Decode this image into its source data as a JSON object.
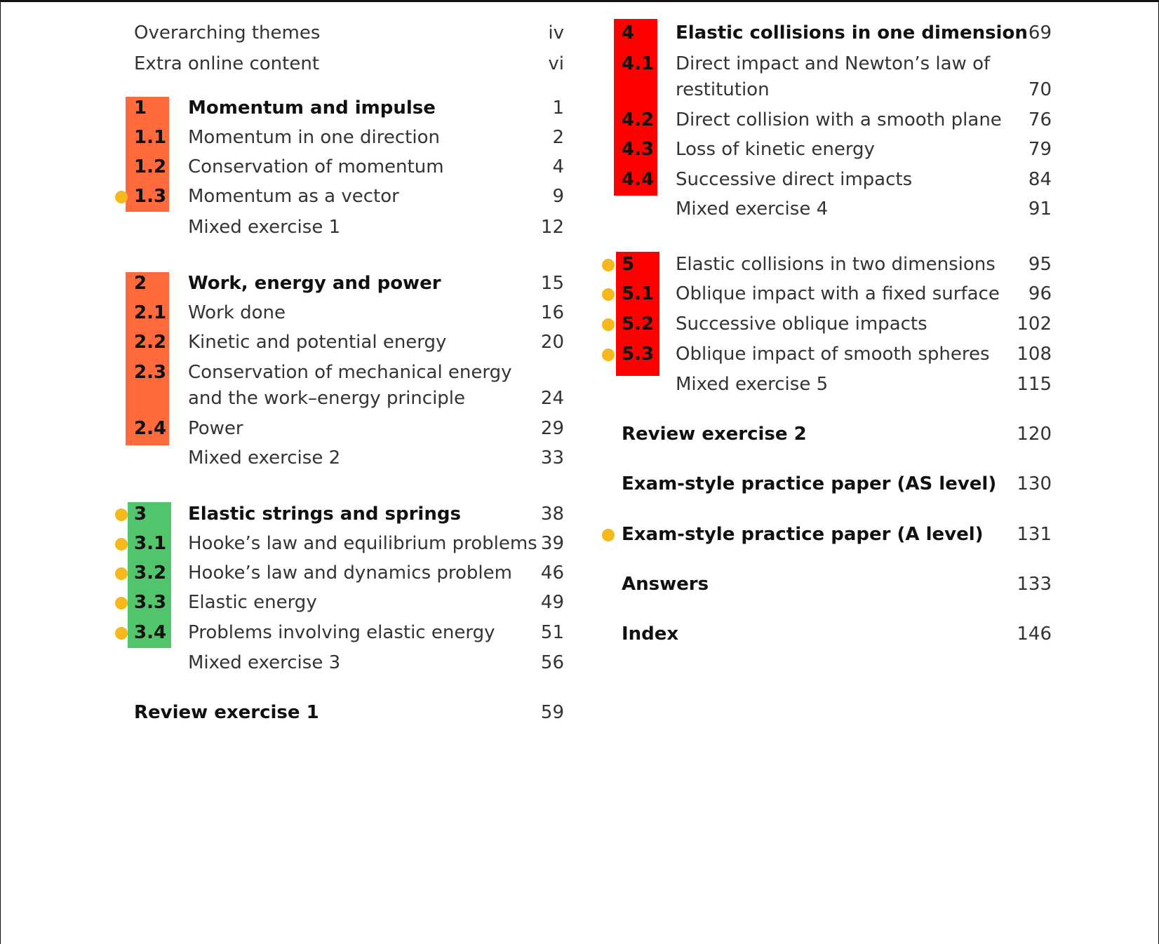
{
  "colors": {
    "orange": "#ff6a3d",
    "red": "#ff0000",
    "green": "#52c46b",
    "dot": "#f6b81b"
  },
  "left_column": [
    {
      "title": "Overarching themes",
      "page": "iv",
      "bold": false
    },
    {
      "title": "Extra online content",
      "page": "vi",
      "bold": false
    },
    {
      "num": "1",
      "title": "Momentum and impulse",
      "page": "1",
      "bold": true
    },
    {
      "num": "1.1",
      "title": "Momentum in one direction",
      "page": "2",
      "bold": false
    },
    {
      "num": "1.2",
      "title": "Conservation of momentum",
      "page": "4",
      "bold": false
    },
    {
      "num": "1.3",
      "title": "Momentum as a vector",
      "page": "9",
      "bold": false,
      "dot": true
    },
    {
      "title": "Mixed exercise 1",
      "page": "12",
      "bold": false
    },
    {
      "num": "2",
      "title": "Work, energy and power",
      "page": "15",
      "bold": true
    },
    {
      "num": "2.1",
      "title": "Work done",
      "page": "16",
      "bold": false
    },
    {
      "num": "2.2",
      "title": "Kinetic and potential energy",
      "page": "20",
      "bold": false
    },
    {
      "num": "2.3",
      "title": "Conservation of mechanical energy",
      "title2": "and the work–energy principle",
      "page": "24",
      "bold": false
    },
    {
      "num": "2.4",
      "title": "Power",
      "page": "29",
      "bold": false
    },
    {
      "title": "Mixed exercise 2",
      "page": "33",
      "bold": false
    },
    {
      "num": "3",
      "title": "Elastic strings and springs",
      "page": "38",
      "bold": true,
      "dot": true
    },
    {
      "num": "3.1",
      "title": "Hooke’s law and equilibrium problems",
      "page": "39",
      "bold": false,
      "dot": true
    },
    {
      "num": "3.2",
      "title": "Hooke’s law and dynamics problem",
      "page": "46",
      "bold": false,
      "dot": true
    },
    {
      "num": "3.3",
      "title": "Elastic energy",
      "page": "49",
      "bold": false,
      "dot": true
    },
    {
      "num": "3.4",
      "title": "Problems involving elastic energy",
      "page": "51",
      "bold": false,
      "dot": true
    },
    {
      "title": "Mixed exercise 3",
      "page": "56",
      "bold": false
    },
    {
      "title": "Review exercise 1",
      "page": "59",
      "bold": true
    }
  ],
  "right_column": [
    {
      "num": "4",
      "title": "Elastic collisions in one dimension",
      "page": "69",
      "bold": true
    },
    {
      "num": "4.1",
      "title": "Direct impact and Newton’s law of",
      "title2": "restitution",
      "page": "70",
      "bold": false
    },
    {
      "num": "4.2",
      "title": "Direct collision with a smooth plane",
      "page": "76",
      "bold": false
    },
    {
      "num": "4.3",
      "title": "Loss of kinetic energy",
      "page": "79",
      "bold": false
    },
    {
      "num": "4.4",
      "title": "Successive direct impacts",
      "page": "84",
      "bold": false
    },
    {
      "title": "Mixed exercise 4",
      "page": "91",
      "bold": false
    },
    {
      "num": "5",
      "title": "Elastic collisions in two dimensions",
      "page": "95",
      "bold": false,
      "dot": true
    },
    {
      "num": "5.1",
      "title": "Oblique impact with a fixed surface",
      "page": "96",
      "bold": false,
      "dot": true
    },
    {
      "num": "5.2",
      "title": "Successive oblique impacts",
      "page": "102",
      "bold": false,
      "dot": true
    },
    {
      "num": "5.3",
      "title": "Oblique impact of smooth spheres",
      "page": "108",
      "bold": false,
      "dot": true
    },
    {
      "title": "Mixed exercise 5",
      "page": "115",
      "bold": false
    },
    {
      "title": "Review exercise 2",
      "page": "120",
      "bold": true
    },
    {
      "title": "Exam-style practice paper (AS level)",
      "page": "130",
      "bold": true
    },
    {
      "title": "Exam-style practice paper (A level)",
      "page": "131",
      "bold": true,
      "dot": true
    },
    {
      "title": "Answers",
      "page": "133",
      "bold": true
    },
    {
      "title": "Index",
      "page": "146",
      "bold": true
    }
  ]
}
